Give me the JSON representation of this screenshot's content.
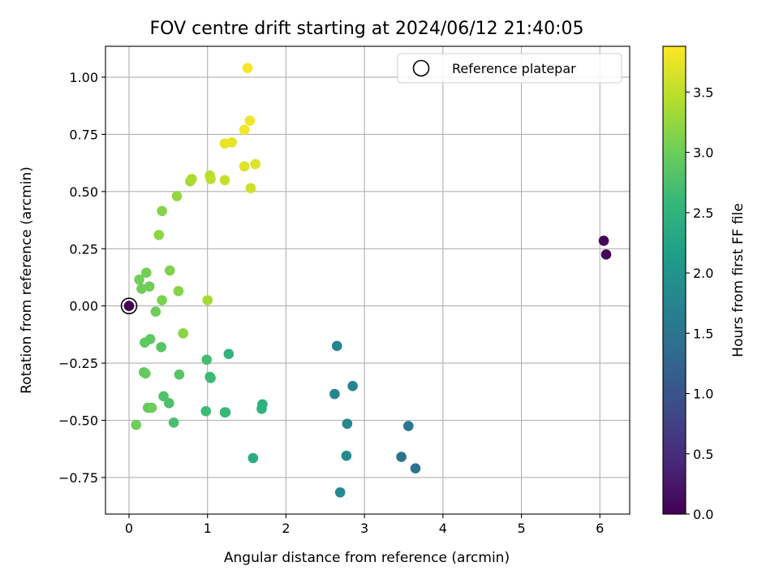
{
  "chart_data": {
    "type": "scatter",
    "title": "FOV centre drift starting at 2024/06/12 21:40:05",
    "xlabel": "Angular distance from reference (arcmin)",
    "ylabel": "Rotation from reference (arcmin)",
    "xlim": [
      -0.3,
      6.38
    ],
    "ylim": [
      -0.91,
      1.135
    ],
    "xticks": [
      0,
      1,
      2,
      3,
      4,
      5,
      6
    ],
    "yticks": [
      -0.75,
      -0.5,
      -0.25,
      0.0,
      0.25,
      0.5,
      0.75,
      1.0
    ],
    "ytick_labels": [
      "−0.75",
      "−0.50",
      "−0.25",
      "0.00",
      "0.25",
      "0.50",
      "0.75",
      "1.00"
    ],
    "grid": true,
    "legend": {
      "placement": "top-right",
      "entries": [
        {
          "label": "Reference platepar",
          "marker": "open-circle"
        }
      ]
    },
    "colorbar": {
      "label": "Hours from first FF file",
      "colormap": "viridis",
      "range": [
        0.0,
        3.88
      ],
      "ticks": [
        0.0,
        0.5,
        1.0,
        1.5,
        2.0,
        2.5,
        3.0,
        3.5
      ],
      "tick_labels": [
        "0.0",
        "0.5",
        "1.0",
        "1.5",
        "2.0",
        "2.5",
        "3.0",
        "3.5"
      ]
    },
    "reference_point": {
      "x": 0.0,
      "y": 0.0
    },
    "points": [
      {
        "x": 0.0,
        "y": 0.0,
        "c": 0.0
      },
      {
        "x": 6.05,
        "y": 0.285,
        "c": 0.03
      },
      {
        "x": 6.08,
        "y": 0.225,
        "c": 0.05
      },
      {
        "x": 3.65,
        "y": -0.71,
        "c": 1.45
      },
      {
        "x": 3.47,
        "y": -0.66,
        "c": 1.5
      },
      {
        "x": 3.56,
        "y": -0.525,
        "c": 1.55
      },
      {
        "x": 2.85,
        "y": -0.35,
        "c": 1.75
      },
      {
        "x": 2.65,
        "y": -0.175,
        "c": 1.8
      },
      {
        "x": 2.62,
        "y": -0.385,
        "c": 1.8
      },
      {
        "x": 2.78,
        "y": -0.515,
        "c": 1.8
      },
      {
        "x": 2.77,
        "y": -0.655,
        "c": 1.85
      },
      {
        "x": 2.69,
        "y": -0.815,
        "c": 1.85
      },
      {
        "x": 1.58,
        "y": -0.665,
        "c": 2.4
      },
      {
        "x": 1.7,
        "y": -0.43,
        "c": 2.45
      },
      {
        "x": 1.69,
        "y": -0.45,
        "c": 2.5
      },
      {
        "x": 1.27,
        "y": -0.21,
        "c": 2.5
      },
      {
        "x": 1.22,
        "y": -0.465,
        "c": 2.55
      },
      {
        "x": 1.23,
        "y": -0.465,
        "c": 2.6
      },
      {
        "x": 1.04,
        "y": -0.315,
        "c": 2.6
      },
      {
        "x": 1.03,
        "y": -0.31,
        "c": 2.65
      },
      {
        "x": 0.98,
        "y": -0.46,
        "c": 2.65
      },
      {
        "x": 0.99,
        "y": -0.235,
        "c": 2.7
      },
      {
        "x": 0.57,
        "y": -0.51,
        "c": 2.75
      },
      {
        "x": 0.51,
        "y": -0.425,
        "c": 2.75
      },
      {
        "x": 0.44,
        "y": -0.395,
        "c": 2.8
      },
      {
        "x": 0.64,
        "y": -0.3,
        "c": 2.85
      },
      {
        "x": 0.41,
        "y": -0.18,
        "c": 2.85
      },
      {
        "x": 0.27,
        "y": -0.145,
        "c": 2.9
      },
      {
        "x": 0.2,
        "y": -0.16,
        "c": 2.9
      },
      {
        "x": 0.19,
        "y": -0.29,
        "c": 2.9
      },
      {
        "x": 0.21,
        "y": -0.295,
        "c": 2.95
      },
      {
        "x": 0.24,
        "y": -0.445,
        "c": 2.95
      },
      {
        "x": 0.29,
        "y": -0.445,
        "c": 3.0
      },
      {
        "x": 0.09,
        "y": -0.52,
        "c": 3.0
      },
      {
        "x": 0.34,
        "y": -0.025,
        "c": 3.0
      },
      {
        "x": 0.16,
        "y": 0.075,
        "c": 3.0
      },
      {
        "x": 0.26,
        "y": 0.085,
        "c": 3.0
      },
      {
        "x": 0.13,
        "y": 0.115,
        "c": 3.05
      },
      {
        "x": 0.22,
        "y": 0.145,
        "c": 3.05
      },
      {
        "x": 0.42,
        "y": 0.025,
        "c": 3.1
      },
      {
        "x": 0.52,
        "y": 0.155,
        "c": 3.1
      },
      {
        "x": 0.63,
        "y": 0.065,
        "c": 3.15
      },
      {
        "x": 0.69,
        "y": -0.12,
        "c": 3.2
      },
      {
        "x": 0.38,
        "y": 0.31,
        "c": 3.2
      },
      {
        "x": 0.42,
        "y": 0.415,
        "c": 3.15
      },
      {
        "x": 0.61,
        "y": 0.48,
        "c": 3.25
      },
      {
        "x": 1.0,
        "y": 0.025,
        "c": 3.35
      },
      {
        "x": 0.78,
        "y": 0.545,
        "c": 3.35
      },
      {
        "x": 0.8,
        "y": 0.555,
        "c": 3.4
      },
      {
        "x": 1.03,
        "y": 0.57,
        "c": 3.45
      },
      {
        "x": 1.04,
        "y": 0.555,
        "c": 3.5
      },
      {
        "x": 1.22,
        "y": 0.55,
        "c": 3.55
      },
      {
        "x": 1.55,
        "y": 0.515,
        "c": 3.6
      },
      {
        "x": 1.47,
        "y": 0.61,
        "c": 3.7
      },
      {
        "x": 1.61,
        "y": 0.62,
        "c": 3.7
      },
      {
        "x": 1.22,
        "y": 0.71,
        "c": 3.75
      },
      {
        "x": 1.31,
        "y": 0.715,
        "c": 3.75
      },
      {
        "x": 1.47,
        "y": 0.77,
        "c": 3.8
      },
      {
        "x": 1.54,
        "y": 0.81,
        "c": 3.8
      },
      {
        "x": 1.51,
        "y": 1.04,
        "c": 3.85
      }
    ]
  }
}
